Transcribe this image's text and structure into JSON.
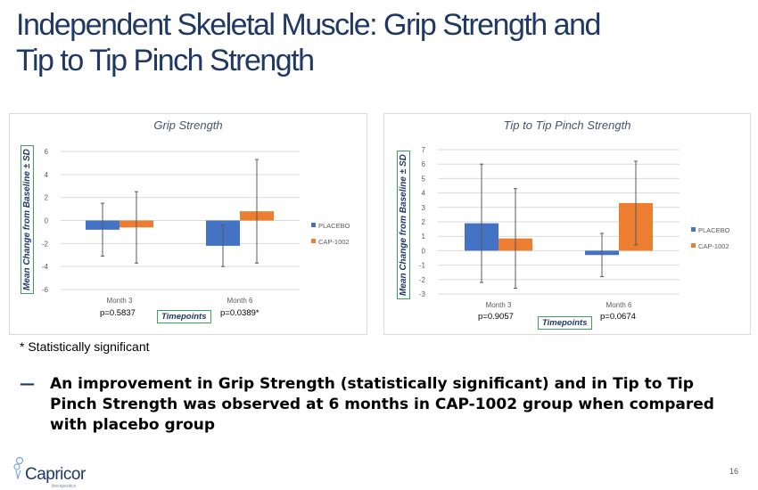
{
  "slide": {
    "title_line1": "Independent Skeletal Muscle: Grip Strength and",
    "title_line2": "Tip to Tip Pinch Strength",
    "footnote": "* Statistically significant",
    "bullet_marker": "—",
    "bullet": "An improvement in Grip Strength (statistically significant) and in Tip to Tip Pinch Strength was observed at 6 months in CAP-1002 group when compared with placebo group",
    "logo_name": "Capricor",
    "logo_sub": "therapeutics",
    "page_number": "16"
  },
  "colors": {
    "placebo": "#4472c4",
    "cap": "#ed7d31",
    "title": "#1f3864"
  },
  "chart_data": [
    {
      "type": "bar",
      "title": "Grip Strength",
      "ylabel": "Mean Change from Baseline ± SD",
      "xlabel": "Timepoints",
      "categories": [
        "Month 3",
        "Month 6"
      ],
      "pvalues": [
        "p=0.5837",
        "p=0.0389*"
      ],
      "ylim": [
        -6,
        6
      ],
      "yticks": [
        -6,
        -4,
        -2,
        0,
        2,
        4,
        6
      ],
      "grid": true,
      "legend": "right",
      "series": [
        {
          "name": "PLACEBO",
          "values": [
            -0.8,
            -2.2
          ],
          "sd": [
            2.3,
            1.8
          ]
        },
        {
          "name": "CAP-1002",
          "values": [
            -0.6,
            0.8
          ],
          "sd": [
            3.1,
            4.5
          ]
        }
      ]
    },
    {
      "type": "bar",
      "title": "Tip to Tip Pinch Strength",
      "ylabel": "Mean Change from Baseline ± SD",
      "xlabel": "Timepoints",
      "categories": [
        "Month 3",
        "Month 6"
      ],
      "pvalues": [
        "p=0.9057",
        "p=0.0674"
      ],
      "ylim": [
        -3,
        7
      ],
      "yticks": [
        -3,
        -2,
        -1,
        0,
        1,
        2,
        3,
        4,
        5,
        6,
        7
      ],
      "grid": true,
      "legend": "right",
      "series": [
        {
          "name": "PLACEBO",
          "values": [
            1.9,
            -0.3
          ],
          "sd": [
            4.1,
            1.5
          ]
        },
        {
          "name": "CAP-1002",
          "values": [
            0.85,
            3.3
          ],
          "sd": [
            3.45,
            2.9
          ]
        }
      ]
    }
  ]
}
